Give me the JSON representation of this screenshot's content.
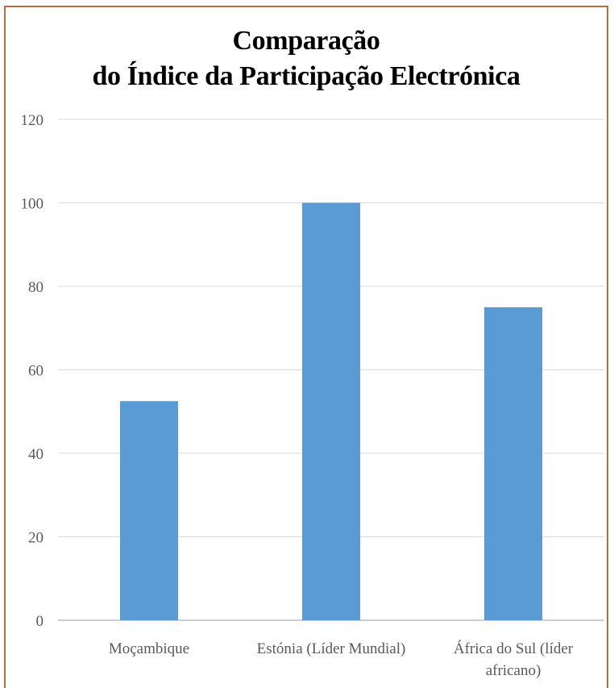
{
  "chart_data": {
    "type": "bar",
    "title_lines": [
      "Comparação",
      "do Índice da Participação Electrónica"
    ],
    "categories": [
      [
        "Moçambique"
      ],
      [
        "Estónia (Líder Mundial)"
      ],
      [
        "África do Sul (líder",
        "africano)"
      ]
    ],
    "values": [
      52.5,
      100,
      75
    ],
    "ylim": [
      0,
      120
    ],
    "yticks": [
      0,
      20,
      40,
      60,
      80,
      100,
      120
    ],
    "grid": true,
    "legend": false,
    "colors": {
      "bar": "#5b9bd5",
      "grid": "#d9d9d9",
      "axis": "#bfbfbf",
      "frame": "#b76d3d"
    }
  }
}
